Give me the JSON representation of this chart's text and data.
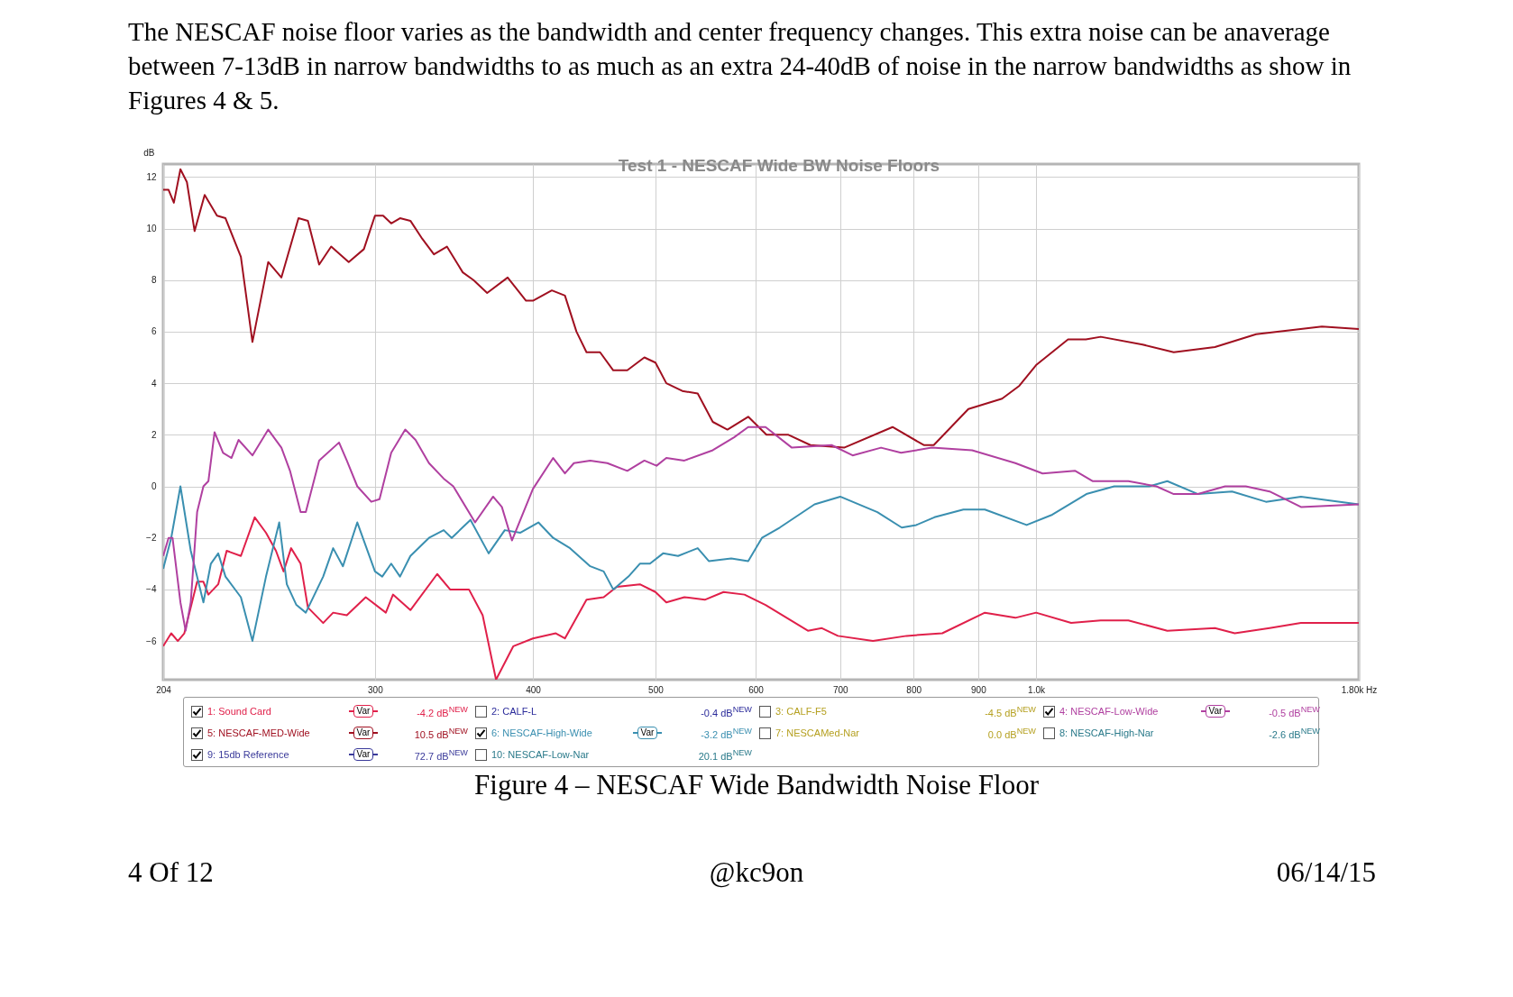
{
  "chart_data": {
    "type": "line",
    "title": "Test 1 - NESCAF Wide BW Noise Floors",
    "ylabel": "dB",
    "xlim": [
      204,
      1800
    ],
    "xticks": [
      204,
      300,
      400,
      500,
      600,
      700,
      800,
      900,
      {
        "value": 1000,
        "label": "1.0k"
      },
      {
        "value": 1800,
        "label": "1.80k Hz"
      }
    ],
    "ylim": [
      -7.5,
      12.5
    ],
    "yticks": [
      -6,
      -4,
      -2,
      0,
      2,
      4,
      6,
      8,
      10,
      12
    ],
    "log": "x",
    "grid": true,
    "legend": "bottom",
    "line_style": "solid",
    "series": [
      {
        "name": "1: Sound Card",
        "color": "#e0204a",
        "x": [
          204,
          207,
          209.5,
          212,
          217,
          219.5,
          221.5,
          225.5,
          229,
          235,
          241,
          246,
          250.5,
          254,
          257.5,
          262,
          265.5,
          273,
          278,
          285,
          295,
          306,
          310,
          320,
          336,
          344,
          356,
          365,
          374,
          386,
          400,
          417,
          424,
          441,
          455,
          466,
          486,
          500,
          510,
          527,
          547,
          566,
          588,
          611,
          660,
          677,
          697,
          743,
          790,
          843,
          911,
          963,
          1000,
          1066,
          1125,
          1183,
          1270,
          1385,
          1436,
          1530,
          1620,
          1800
        ],
        "values": [
          -6.2,
          -5.7,
          -6.0,
          -5.7,
          -3.7,
          -3.7,
          -4.2,
          -3.8,
          -2.5,
          -2.7,
          -1.2,
          -1.8,
          -2.5,
          -3.3,
          -2.4,
          -3.0,
          -4.7,
          -5.3,
          -4.9,
          -5.0,
          -4.3,
          -4.9,
          -4.2,
          -4.8,
          -3.4,
          -4.0,
          -4.0,
          -5.0,
          -7.5,
          -6.2,
          -5.9,
          -5.7,
          -5.9,
          -4.4,
          -4.3,
          -3.9,
          -3.8,
          -4.1,
          -4.5,
          -4.3,
          -4.4,
          -4.1,
          -4.2,
          -4.6,
          -5.6,
          -5.5,
          -5.8,
          -6.0,
          -5.8,
          -5.7,
          -4.9,
          -5.1,
          -4.9,
          -5.3,
          -5.2,
          -5.2,
          -5.6,
          -5.5,
          -5.7,
          -5.5,
          -5.3,
          -5.3
        ]
      },
      {
        "name": "5: NESCAF-MED-Wide",
        "color": "#a01020",
        "x": [
          204,
          206,
          208,
          210.5,
          213,
          216,
          220,
          225,
          228.5,
          235,
          240,
          247,
          253,
          261,
          265.5,
          271,
          277,
          286,
          294,
          300,
          304.5,
          309,
          314,
          320,
          327,
          334,
          342,
          352,
          359,
          368,
          382,
          395,
          400,
          414,
          424,
          433,
          441,
          452,
          463,
          475,
          490,
          500,
          510,
          525,
          540,
          555,
          570,
          592,
          612,
          637,
          663,
          705,
          770,
          815,
          830,
          884,
          940,
          970,
          1000,
          1060,
          1095,
          1125,
          1214,
          1285,
          1385,
          1493,
          1683,
          1800
        ],
        "values": [
          11.5,
          11.5,
          11.0,
          12.3,
          11.8,
          9.9,
          11.3,
          10.5,
          10.4,
          8.9,
          5.6,
          8.7,
          8.1,
          10.4,
          10.3,
          8.6,
          9.3,
          8.7,
          9.2,
          10.5,
          10.5,
          10.2,
          10.4,
          10.3,
          9.6,
          9.0,
          9.3,
          8.3,
          8.0,
          7.5,
          8.1,
          7.2,
          7.2,
          7.6,
          7.4,
          6.0,
          5.2,
          5.2,
          4.5,
          4.5,
          5.0,
          4.8,
          4.0,
          3.7,
          3.6,
          2.5,
          2.2,
          2.7,
          2.0,
          2.0,
          1.6,
          1.5,
          2.3,
          1.6,
          1.6,
          3.0,
          3.4,
          3.9,
          4.7,
          5.7,
          5.7,
          5.8,
          5.5,
          5.2,
          5.4,
          5.9,
          6.2,
          6.1
        ]
      },
      {
        "name": "6: NESCAF-High-Wide",
        "color": "#3a8fb0",
        "x": [
          204,
          207,
          210.5,
          214.5,
          219.5,
          222.5,
          225.5,
          228.5,
          235,
          240,
          246,
          252,
          255.5,
          260,
          264.5,
          273,
          278,
          283,
          290.5,
          300,
          304,
          309,
          314,
          320,
          331,
          340,
          345,
          357,
          369,
          380,
          391,
          404,
          415,
          428,
          444,
          455,
          463,
          476,
          486,
          495,
          507,
          521,
          540,
          551,
          574,
          592,
          607,
          627,
          668,
          700,
          749,
          783,
          804,
          831,
          876,
          911,
          983,
          1030,
          1096,
          1153,
          1229,
          1270,
          1343,
          1429,
          1520,
          1620,
          1800
        ],
        "values": [
          -3.2,
          -2.0,
          0.0,
          -2.5,
          -4.5,
          -3.0,
          -2.6,
          -3.5,
          -4.3,
          -6.0,
          -3.5,
          -1.4,
          -3.8,
          -4.6,
          -4.9,
          -3.5,
          -2.4,
          -3.1,
          -1.4,
          -3.3,
          -3.5,
          -3.0,
          -3.5,
          -2.7,
          -2.0,
          -1.7,
          -2.0,
          -1.3,
          -2.6,
          -1.7,
          -1.8,
          -1.4,
          -2.0,
          -2.4,
          -3.1,
          -3.3,
          -4.0,
          -3.5,
          -3.0,
          -3.0,
          -2.6,
          -2.7,
          -2.4,
          -2.9,
          -2.8,
          -2.9,
          -2.0,
          -1.6,
          -0.7,
          -0.4,
          -1.0,
          -1.6,
          -1.5,
          -1.2,
          -0.9,
          -0.9,
          -1.5,
          -1.1,
          -0.3,
          0.0,
          0.0,
          0.2,
          -0.3,
          -0.2,
          -0.6,
          -0.4,
          -0.7
        ]
      },
      {
        "name": "4: NESCAF-Low-Wide",
        "color": "#b040a0",
        "x": [
          204,
          206,
          207.5,
          210.5,
          212.5,
          214.5,
          217,
          219.5,
          221.5,
          224,
          227.5,
          231,
          234,
          240,
          247,
          253,
          257,
          262,
          264.5,
          271,
          281,
          285,
          290.5,
          298,
          302.5,
          309,
          317,
          323,
          331,
          340,
          346,
          360,
          372,
          378,
          385,
          400,
          415,
          424,
          431,
          444,
          458,
          475,
          490,
          501,
          510,
          527,
          555,
          577,
          592,
          611,
          641,
          689,
          716,
          754,
          782,
          827,
          890,
          963,
          1012,
          1074,
          1109,
          1183,
          1245,
          1285,
          1343,
          1411,
          1465,
          1530,
          1620,
          1800
        ],
        "values": [
          -2.7,
          -2.0,
          -2.0,
          -4.5,
          -5.6,
          -4.5,
          -1.0,
          0.0,
          0.2,
          2.1,
          1.3,
          1.1,
          1.8,
          1.2,
          2.2,
          1.5,
          0.6,
          -1.0,
          -1.0,
          1.0,
          1.7,
          1.0,
          0.0,
          -0.6,
          -0.5,
          1.3,
          2.2,
          1.8,
          0.9,
          0.3,
          0.0,
          -1.4,
          -0.4,
          -0.8,
          -2.1,
          -0.1,
          1.1,
          0.5,
          0.9,
          1.0,
          0.9,
          0.6,
          1.0,
          0.8,
          1.1,
          1.0,
          1.4,
          1.9,
          2.3,
          2.3,
          1.5,
          1.6,
          1.2,
          1.5,
          1.3,
          1.5,
          1.4,
          0.9,
          0.5,
          0.6,
          0.2,
          0.2,
          0.0,
          -0.3,
          -0.3,
          0.0,
          0.0,
          -0.2,
          -0.8,
          -0.7
        ]
      }
    ],
    "annotations": [
      " The NESCAF noise floor varies as the bandwidth and center frequency changes.  This extra noise can be anaverage between 7-13dB in narrow bandwidths to as much as an extra 24-40dB of noise in the narrow bandwidths as show in Figures 4 & 5.",
      "-4.2 dB$^{NEW}$",
      "2: CALF-L",
      "-0.4 dB$^{NEW}$",
      "3: CALF-F5",
      "-4.5 dB$^{NEW}$",
      "-0.5 dB$^{NEW}$",
      "10.5 dB$^{NEW}$",
      "-3.2 dB$^{NEW}$",
      "7: NESCAMed-Nar",
      "0.0 dB$^{NEW}$",
      "8: NESCAF-High-Nar",
      "-2.6 dB$^{NEW}$",
      "9: 15db Reference",
      "72.7 dB$^{NEW}$",
      "10: NESCAF-Low-Nar",
      "20.1 dB$^{NEW}$",
      "Figure 4 – NESCAF Wide Bandwidth Noise Floor",
      "4 Of 12",
      "@kc9on",
      "06/14/15",
      "Var"
    ]
  }
}
